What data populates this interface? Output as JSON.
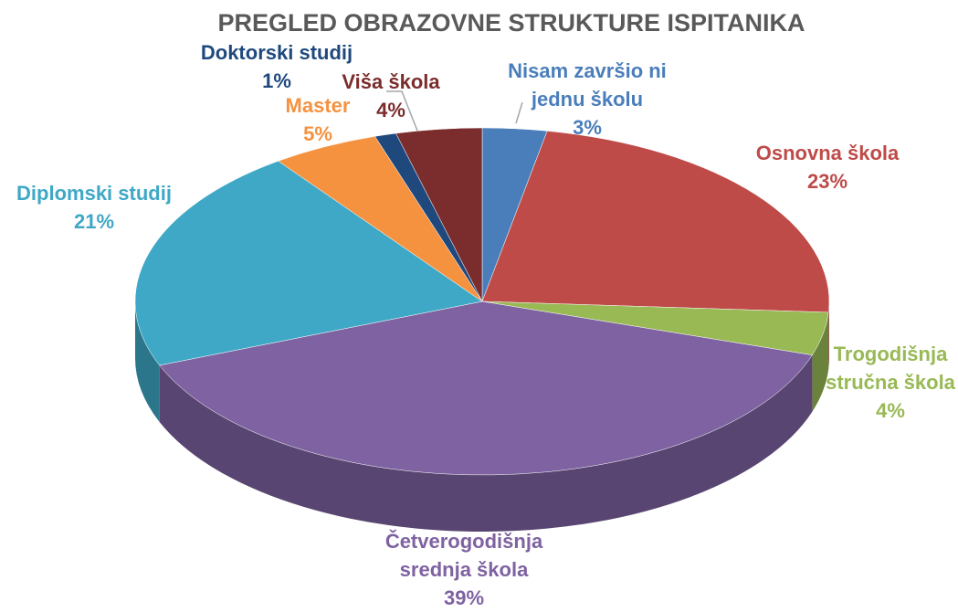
{
  "chart_data": {
    "type": "pie",
    "title": "PREGLED OBRAZOVNE STRUKTURE ISPITANIKA",
    "categories": [
      "Nisam završio ni jednu školu",
      "Osnovna škola",
      "Trogodišnja stručna škola",
      "Četverogodišnja srednja škola",
      "Diplomski studij",
      "Master",
      "Doktorski studij",
      "Viša škola"
    ],
    "values": [
      3,
      23,
      4,
      39,
      21,
      5,
      1,
      4
    ],
    "value_labels": [
      "3%",
      "23%",
      "4%",
      "39%",
      "21%",
      "5%",
      "1%",
      "4%"
    ],
    "colors": [
      "#4a7ebb",
      "#be4b48",
      "#98b954",
      "#7e62a1",
      "#3ea8c6",
      "#f59240",
      "#1f497d",
      "#7b2c2c"
    ]
  }
}
